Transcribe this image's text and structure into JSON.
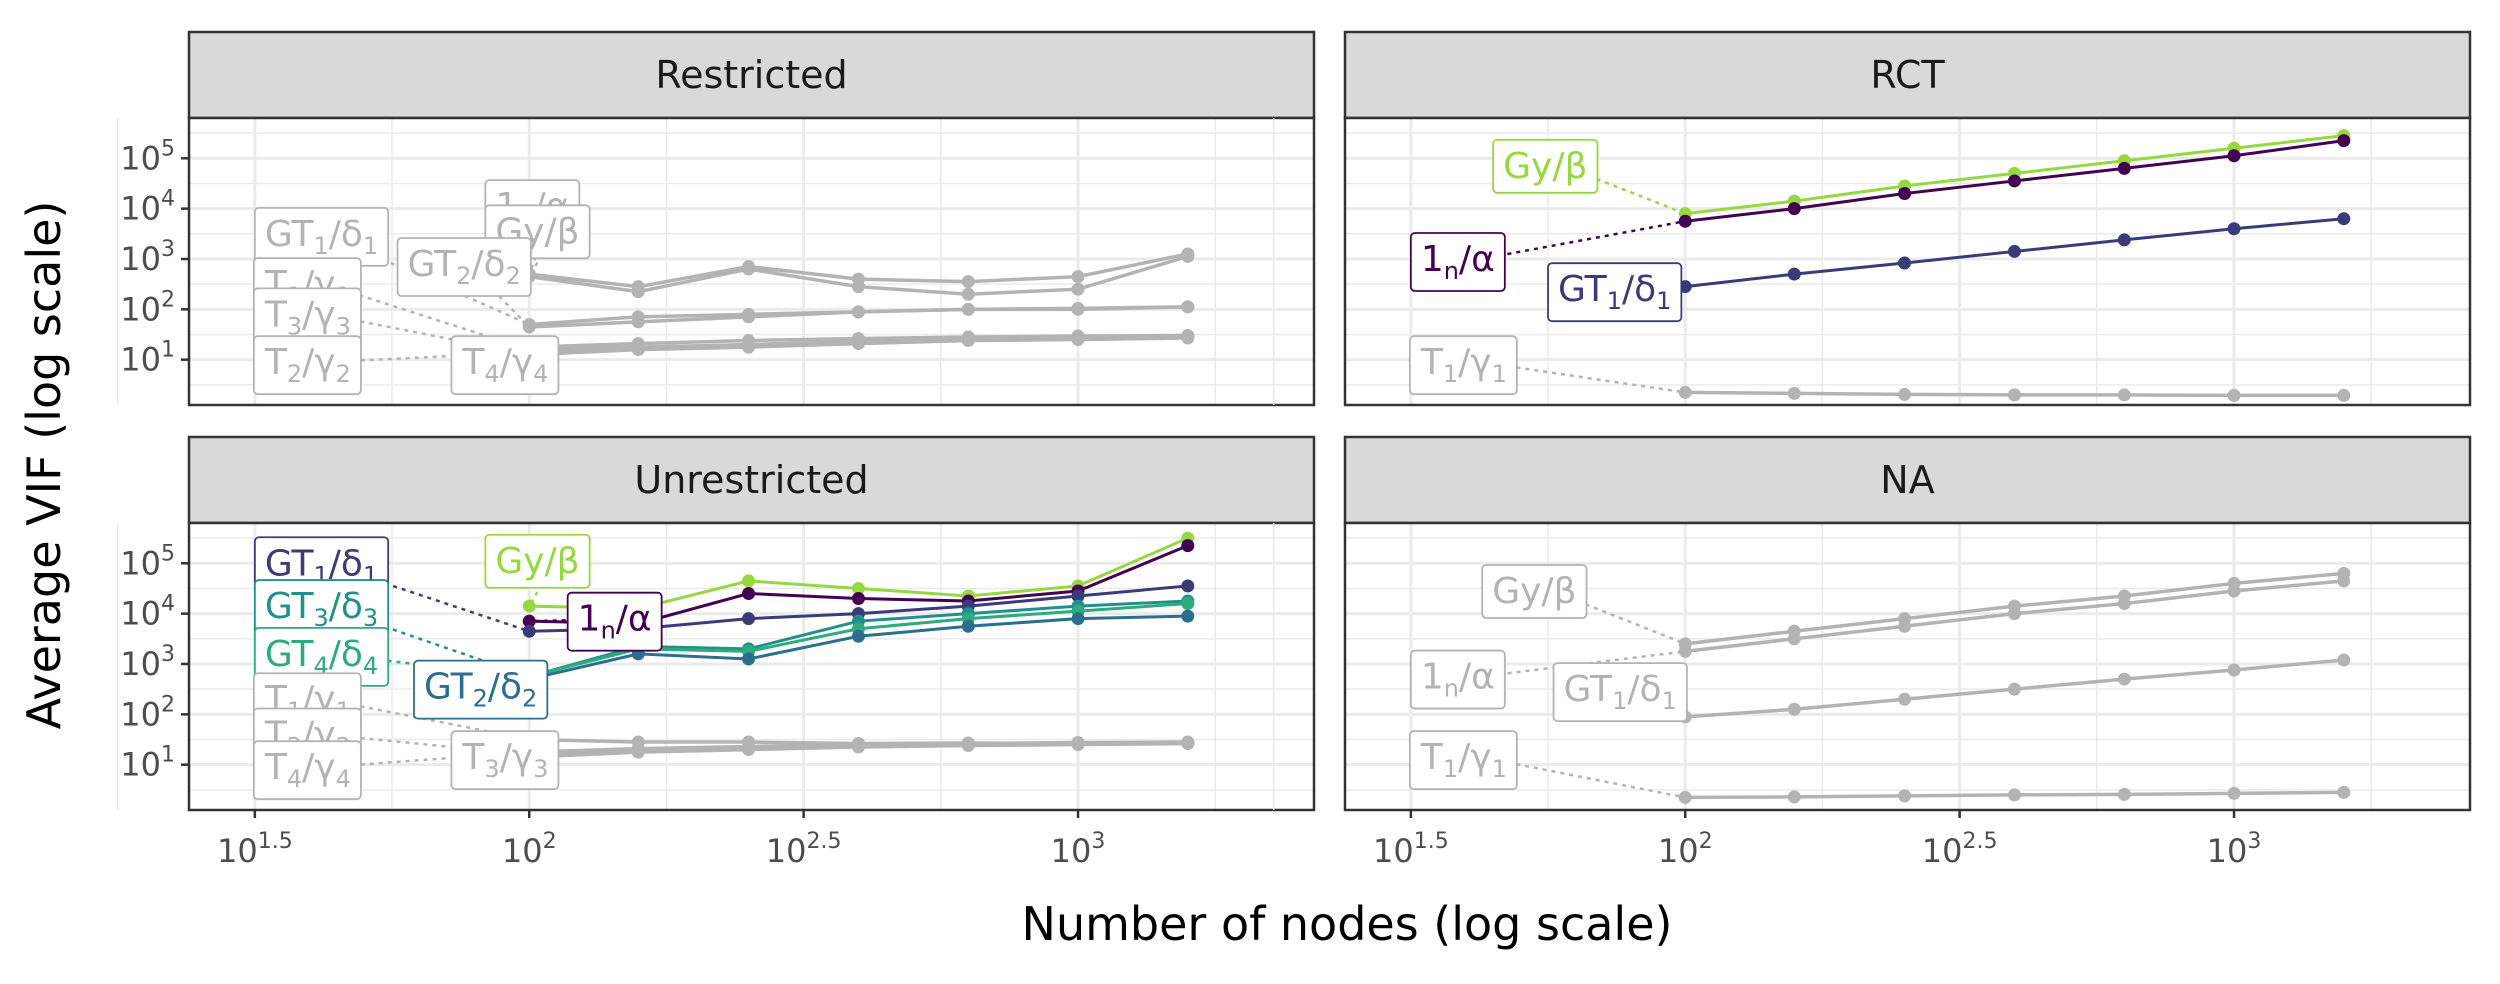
{
  "chart_data": {
    "type": "line",
    "xlabel": "Number of nodes (log scale)",
    "ylabel": "Average VIF (log scale)",
    "x_scale": "log10",
    "y_scale": "log10",
    "xlim_log10": [
      1.38,
      3.43
    ],
    "ylim_log10": [
      0.1,
      5.8
    ],
    "x_tick_labels": [
      {
        "base": "10",
        "exp": "1.5",
        "log10": 1.5
      },
      {
        "base": "10",
        "exp": "2",
        "log10": 2.0
      },
      {
        "base": "10",
        "exp": "2.5",
        "log10": 2.5
      },
      {
        "base": "10",
        "exp": "3",
        "log10": 3.0
      }
    ],
    "y_tick_labels": [
      {
        "base": "10",
        "exp": "1",
        "log10": 1
      },
      {
        "base": "10",
        "exp": "2",
        "log10": 2
      },
      {
        "base": "10",
        "exp": "3",
        "log10": 3
      },
      {
        "base": "10",
        "exp": "4",
        "log10": 4
      },
      {
        "base": "10",
        "exp": "5",
        "log10": 5
      }
    ],
    "x": [
      100,
      158,
      251,
      398,
      631,
      1000,
      1585
    ],
    "grid": true,
    "legend": "none",
    "panels": [
      {
        "title": "Restricted",
        "series": [
          {
            "label": "1_n/α",
            "main": "1",
            "sub": "n",
            "greek": "α",
            "color": "#b3b3b3",
            "highlight": false,
            "y_log10": [
              2.7,
              2.45,
              2.85,
              2.6,
              2.55,
              2.65,
              3.1
            ],
            "label_pos": {
              "x": 1.92,
              "y": 4.05
            }
          },
          {
            "label": "Gy/β",
            "main": "Gy",
            "sub": "",
            "greek": "β",
            "color": "#b3b3b3",
            "highlight": false,
            "y_log10": [
              2.65,
              2.35,
              2.8,
              2.45,
              2.3,
              2.4,
              3.05
            ],
            "label_pos": {
              "x": 1.92,
              "y": 3.55
            }
          },
          {
            "label": "GT_1/δ_1",
            "main": "GT",
            "sub": "1",
            "greek": "δ",
            "gsub": "1",
            "color": "#b3b3b3",
            "highlight": false,
            "y_log10": [
              1.7,
              1.85,
              1.9,
              1.95,
              2.0,
              2.0,
              2.05
            ],
            "label_pos": {
              "x": 1.5,
              "y": 3.5
            }
          },
          {
            "label": "T_1/γ_1",
            "main": "T",
            "sub": "1",
            "greek": "γ",
            "gsub": "1",
            "color": "#b3b3b3",
            "highlight": false,
            "y_log10": [
              1.2,
              1.25,
              1.3,
              1.35,
              1.4,
              1.42,
              1.45
            ],
            "label_pos": {
              "x": 1.5,
              "y": 2.5
            }
          },
          {
            "label": "GT_2/δ_2",
            "main": "GT",
            "sub": "2",
            "greek": "δ",
            "gsub": "2",
            "color": "#b3b3b3",
            "highlight": false,
            "y_log10": [
              1.65,
              1.75,
              1.85,
              1.95,
              2.0,
              2.02,
              2.05
            ],
            "label_pos": {
              "x": 1.76,
              "y": 2.9
            }
          },
          {
            "label": "T_3/γ_3",
            "main": "T",
            "sub": "3",
            "greek": "γ",
            "gsub": "3",
            "color": "#b3b3b3",
            "highlight": false,
            "y_log10": [
              1.1,
              1.2,
              1.25,
              1.32,
              1.38,
              1.4,
              1.43
            ],
            "label_pos": {
              "x": 1.5,
              "y": 1.9
            }
          },
          {
            "label": "T_2/γ_2",
            "main": "T",
            "sub": "2",
            "greek": "γ",
            "gsub": "2",
            "color": "#b3b3b3",
            "highlight": false,
            "y_log10": [
              1.15,
              1.22,
              1.3,
              1.36,
              1.4,
              1.42,
              1.45
            ],
            "label_pos": {
              "x": 1.5,
              "y": 0.95
            }
          },
          {
            "label": "T_4/γ_4",
            "main": "T",
            "sub": "4",
            "greek": "γ",
            "gsub": "4",
            "color": "#b3b3b3",
            "highlight": false,
            "y_log10": [
              1.25,
              1.32,
              1.38,
              1.42,
              1.45,
              1.47,
              1.48
            ],
            "label_pos": {
              "x": 1.86,
              "y": 0.95
            }
          }
        ]
      },
      {
        "title": "RCT",
        "series": [
          {
            "label": "Gy/β",
            "main": "Gy",
            "sub": "",
            "greek": "β",
            "color": "#95d840",
            "highlight": true,
            "y_log10": [
              3.9,
              4.15,
              4.45,
              4.7,
              4.95,
              5.2,
              5.45
            ],
            "label_pos": {
              "x": 1.65,
              "y": 4.85
            }
          },
          {
            "label": "1_n/α",
            "main": "1",
            "sub": "n",
            "greek": "α",
            "color": "#440154",
            "highlight": true,
            "y_log10": [
              3.75,
              4.0,
              4.3,
              4.55,
              4.8,
              5.05,
              5.35
            ],
            "label_pos": {
              "x": 1.5,
              "y": 3.0
            }
          },
          {
            "label": "GT_1/δ_1",
            "main": "GT",
            "sub": "1",
            "greek": "δ",
            "gsub": "1",
            "color": "#3b3b7a",
            "highlight": true,
            "y_log10": [
              2.45,
              2.7,
              2.92,
              3.15,
              3.38,
              3.6,
              3.8
            ],
            "label_pos": {
              "x": 1.75,
              "y": 2.4
            }
          },
          {
            "label": "T_1/γ_1",
            "main": "T",
            "sub": "1",
            "greek": "γ",
            "gsub": "1",
            "color": "#b3b3b3",
            "highlight": false,
            "y_log10": [
              0.35,
              0.33,
              0.31,
              0.3,
              0.3,
              0.29,
              0.29
            ],
            "label_pos": {
              "x": 1.5,
              "y": 0.95
            }
          }
        ]
      },
      {
        "title": "Unrestricted",
        "series": [
          {
            "label": "Gy/β",
            "main": "Gy",
            "sub": "",
            "greek": "β",
            "color": "#95d840",
            "highlight": true,
            "y_log10": [
              4.15,
              4.1,
              4.65,
              4.5,
              4.35,
              4.55,
              5.5
            ],
            "label_pos": {
              "x": 1.92,
              "y": 5.05
            }
          },
          {
            "label": "1_n/α",
            "main": "1",
            "sub": "n",
            "greek": "α",
            "color": "#440154",
            "highlight": true,
            "y_log10": [
              3.85,
              3.8,
              4.4,
              4.3,
              4.25,
              4.45,
              5.35
            ],
            "label_pos": {
              "x": 2.07,
              "y": 3.9
            }
          },
          {
            "label": "GT_1/δ_1",
            "main": "GT",
            "sub": "1",
            "greek": "δ",
            "gsub": "1",
            "color": "#3b3b7a",
            "highlight": true,
            "y_log10": [
              3.65,
              3.7,
              3.9,
              4.0,
              4.15,
              4.35,
              4.55
            ],
            "label_pos": {
              "x": 1.5,
              "y": 5.0
            }
          },
          {
            "label": "GT_3/δ_3",
            "main": "GT",
            "sub": "3",
            "greek": "δ",
            "gsub": "3",
            "color": "#21908c",
            "highlight": true,
            "y_log10": [
              2.75,
              3.35,
              3.3,
              3.85,
              4.0,
              4.15,
              4.25
            ],
            "label_pos": {
              "x": 1.5,
              "y": 4.15
            }
          },
          {
            "label": "GT_4/δ_4",
            "main": "GT",
            "sub": "4",
            "greek": "δ",
            "gsub": "4",
            "color": "#2dab7e",
            "highlight": true,
            "y_log10": [
              2.75,
              3.3,
              3.25,
              3.7,
              3.9,
              4.05,
              4.2
            ],
            "label_pos": {
              "x": 1.5,
              "y": 3.2
            }
          },
          {
            "label": "GT_2/δ_2",
            "main": "GT",
            "sub": "2",
            "greek": "δ",
            "gsub": "2",
            "color": "#2c6e8e",
            "highlight": true,
            "y_log10": [
              2.7,
              3.2,
              3.1,
              3.55,
              3.75,
              3.9,
              3.95
            ],
            "label_pos": {
              "x": 1.79,
              "y": 2.55
            }
          },
          {
            "label": "T_1/γ_1",
            "main": "T",
            "sub": "1",
            "greek": "γ",
            "gsub": "1",
            "color": "#b3b3b3",
            "highlight": false,
            "y_log10": [
              1.5,
              1.45,
              1.45,
              1.42,
              1.43,
              1.42,
              1.43
            ],
            "label_pos": {
              "x": 1.5,
              "y": 2.3
            }
          },
          {
            "label": "T_2/γ_2",
            "main": "T",
            "sub": "2",
            "greek": "γ",
            "gsub": "2",
            "color": "#b3b3b3",
            "highlight": false,
            "y_log10": [
              1.2,
              1.3,
              1.35,
              1.38,
              1.4,
              1.42,
              1.43
            ],
            "label_pos": {
              "x": 1.5,
              "y": 1.6
            }
          },
          {
            "label": "T_3/γ_3",
            "main": "T",
            "sub": "3",
            "greek": "γ",
            "gsub": "3",
            "color": "#b3b3b3",
            "highlight": false,
            "y_log10": [
              1.15,
              1.25,
              1.3,
              1.35,
              1.38,
              1.4,
              1.42
            ],
            "label_pos": {
              "x": 1.86,
              "y": 1.15
            }
          },
          {
            "label": "T_4/γ_4",
            "main": "T",
            "sub": "4",
            "greek": "γ",
            "gsub": "4",
            "color": "#b3b3b3",
            "highlight": false,
            "y_log10": [
              1.25,
              1.32,
              1.36,
              1.4,
              1.42,
              1.44,
              1.45
            ],
            "label_pos": {
              "x": 1.5,
              "y": 0.95
            }
          }
        ]
      },
      {
        "title": "NA",
        "series": [
          {
            "label": "Gy/β",
            "main": "Gy",
            "sub": "",
            "greek": "β",
            "color": "#b3b3b3",
            "highlight": false,
            "y_log10": [
              3.4,
              3.65,
              3.9,
              4.15,
              4.35,
              4.6,
              4.8
            ],
            "label_pos": {
              "x": 1.63,
              "y": 4.45
            }
          },
          {
            "label": "1_n/α",
            "main": "1",
            "sub": "n",
            "greek": "α",
            "color": "#b3b3b3",
            "highlight": false,
            "y_log10": [
              3.25,
              3.5,
              3.75,
              4.0,
              4.2,
              4.45,
              4.65
            ],
            "label_pos": {
              "x": 1.5,
              "y": 2.75
            }
          },
          {
            "label": "GT_1/δ_1",
            "main": "GT",
            "sub": "1",
            "greek": "δ",
            "gsub": "1",
            "color": "#b3b3b3",
            "highlight": false,
            "y_log10": [
              1.95,
              2.1,
              2.3,
              2.5,
              2.7,
              2.88,
              3.08
            ],
            "label_pos": {
              "x": 1.76,
              "y": 2.5
            }
          },
          {
            "label": "T_1/γ_1",
            "main": "T",
            "sub": "1",
            "greek": "γ",
            "gsub": "1",
            "color": "#b3b3b3",
            "highlight": false,
            "y_log10": [
              0.35,
              0.36,
              0.38,
              0.4,
              0.41,
              0.43,
              0.45
            ],
            "label_pos": {
              "x": 1.5,
              "y": 1.15
            }
          }
        ]
      }
    ]
  }
}
